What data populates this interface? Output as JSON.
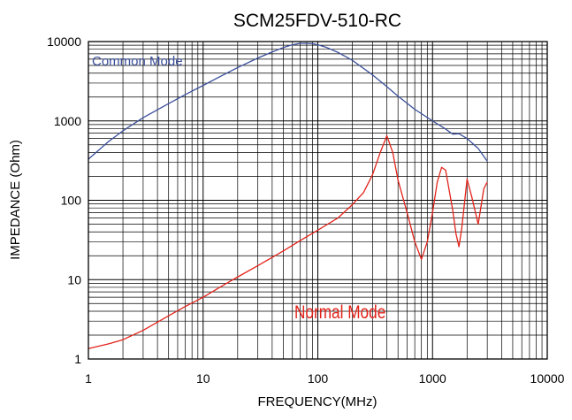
{
  "chart_data": {
    "type": "line",
    "title": "SCM25FDV-510-RC",
    "xlabel": "FREQUENCY(MHz)",
    "ylabel": "IMPEDANCE (Ohm)",
    "x_scale": "log",
    "y_scale": "log",
    "xlim": [
      1,
      10000
    ],
    "ylim": [
      1,
      10000
    ],
    "x_ticks": [
      "1",
      "10",
      "100",
      "1000",
      "10000"
    ],
    "y_ticks": [
      "1",
      "10",
      "100",
      "1000",
      "10000"
    ],
    "grid": true,
    "series": [
      {
        "name": "Common Mode",
        "color": "#3a4f9a",
        "x": [
          1,
          1.5,
          2,
          3,
          5,
          7,
          10,
          15,
          20,
          30,
          40,
          50,
          60,
          70,
          80,
          90,
          100,
          120,
          150,
          200,
          300,
          400,
          500,
          700,
          1000,
          1300,
          1500,
          1700,
          2000,
          2500,
          3000
        ],
        "y": [
          330,
          550,
          750,
          1100,
          1650,
          2150,
          2800,
          3800,
          4700,
          6200,
          7400,
          8400,
          9100,
          9500,
          9500,
          9400,
          9100,
          8400,
          7300,
          5800,
          3800,
          2700,
          2050,
          1400,
          1000,
          790,
          680,
          690,
          600,
          450,
          310
        ]
      },
      {
        "name": "Normal Mode",
        "color": "#e2231a",
        "x": [
          1,
          1.5,
          2,
          3,
          5,
          7,
          10,
          15,
          20,
          30,
          50,
          70,
          100,
          150,
          200,
          250,
          300,
          350,
          400,
          450,
          500,
          600,
          700,
          800,
          900,
          1000,
          1100,
          1200,
          1300,
          1500,
          1600,
          1700,
          1800,
          2000,
          2200,
          2500,
          2800,
          3000
        ],
        "y": [
          1.35,
          1.55,
          1.75,
          2.3,
          3.5,
          4.6,
          6,
          8.5,
          10.8,
          15,
          23,
          31,
          42,
          60,
          88,
          125,
          210,
          400,
          650,
          400,
          180,
          70,
          30,
          18,
          30,
          70,
          170,
          260,
          240,
          75,
          38,
          26,
          45,
          185,
          110,
          50,
          140,
          170
        ]
      }
    ],
    "annotations": [
      {
        "text": "Common Mode",
        "color": "#3a4f9a"
      },
      {
        "text": "Normal Mode",
        "color": "#e2231a"
      }
    ]
  }
}
